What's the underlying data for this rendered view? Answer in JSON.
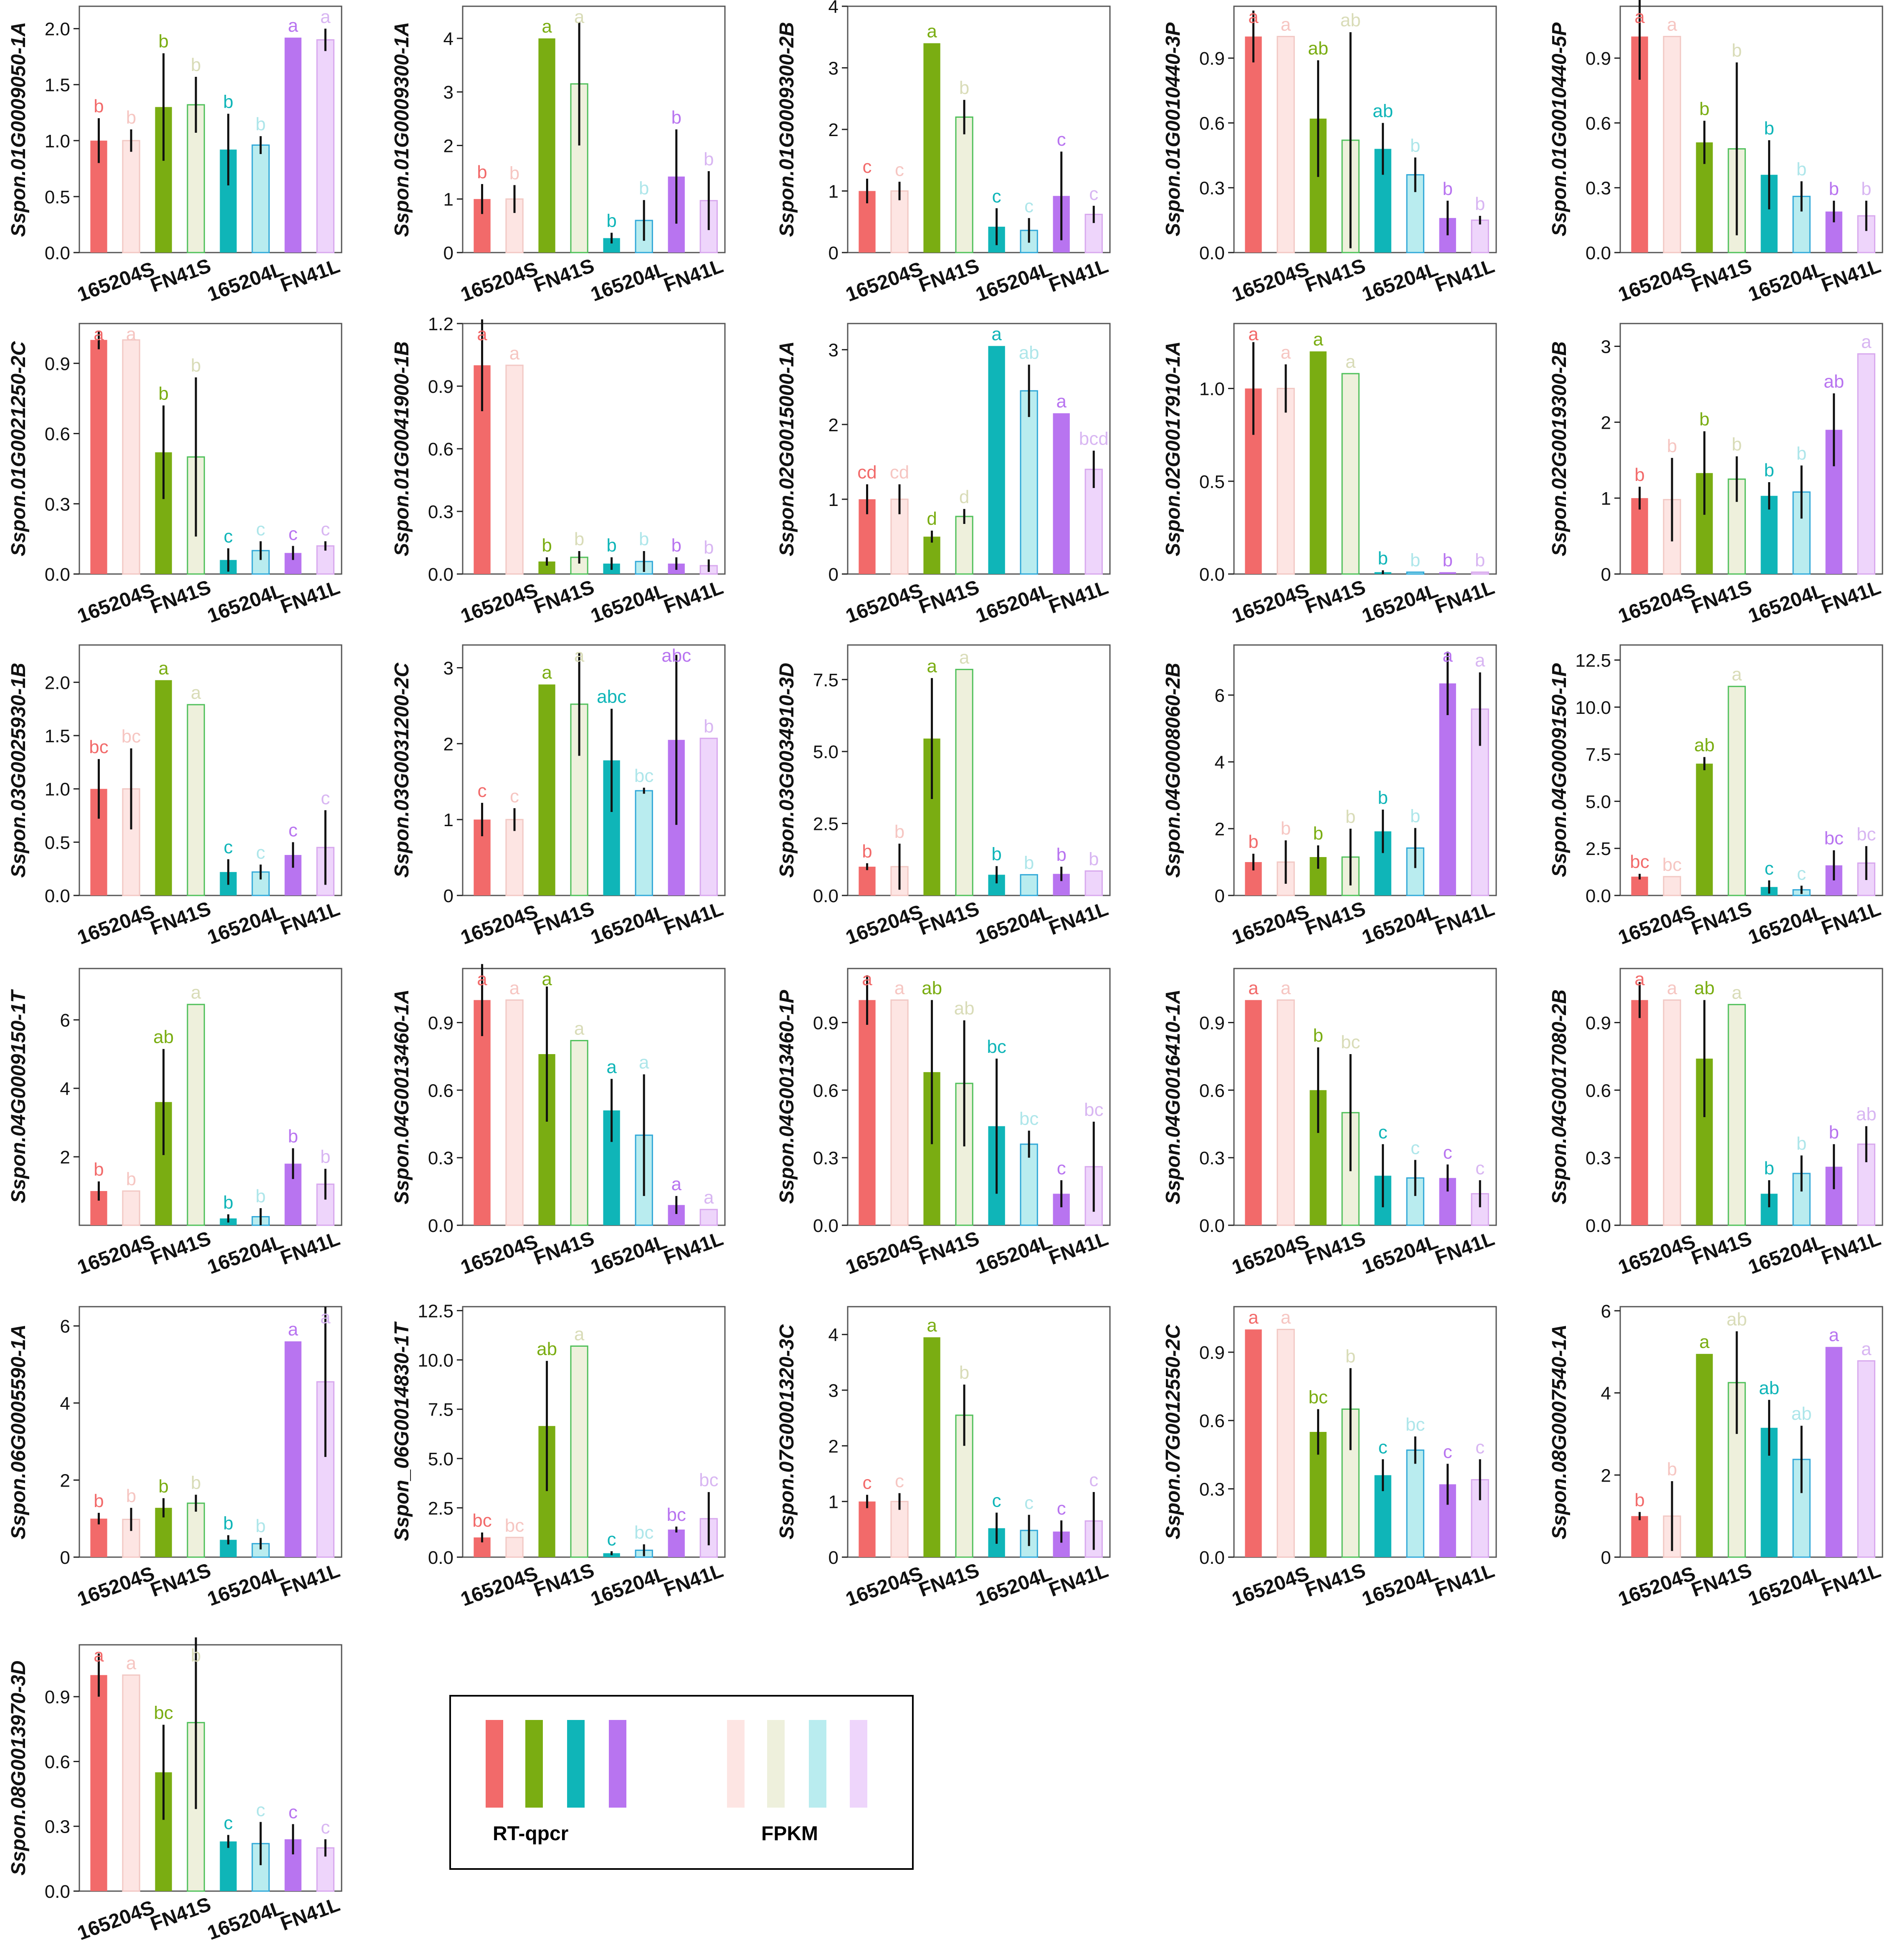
{
  "figure": {
    "categories": [
      "165204S",
      "FN41S",
      "165204L",
      "FN41L"
    ],
    "legend": {
      "qpcr_label": "RT-qpcr",
      "fpkm_label": "FPKM"
    }
  },
  "colors": {
    "qpcr": [
      "#f26a6a",
      "#7aad12",
      "#0fb5b8",
      "#b874f0"
    ],
    "fpkm": [
      "#fde5e3",
      "#eef0dc",
      "#b9ecef",
      "#eed5fb"
    ],
    "fpkm_edge": [
      "#f2c8c4",
      "#4fc05a",
      "#30a8d8",
      "#d8a8ee"
    ],
    "letters": [
      "#f26a6a",
      "#7aad12",
      "#0fb5b8",
      "#b874f0"
    ],
    "letters_light": [
      "#f6c6c2",
      "#d9dcb8",
      "#aee6ea",
      "#d8b6f2"
    ]
  },
  "chart_data": [
    {
      "ylabel": "Sspon.01G0009050-1A",
      "ymax": 2.2,
      "ticks": [
        "0.0",
        "0.5",
        "1.0",
        "1.5",
        "2.0"
      ],
      "tick_values": [
        0,
        0.5,
        1,
        1.5,
        2
      ],
      "qpcr": [
        1.0,
        1.3,
        0.92,
        1.92
      ],
      "qpcr_err": [
        0.2,
        0.48,
        0.32,
        0
      ],
      "fpkm": [
        1.0,
        1.32,
        0.96,
        1.9
      ],
      "fpkm_err": [
        0.1,
        0.25,
        0.08,
        0.1
      ],
      "letters_qpcr": [
        "b",
        "b",
        "b",
        "a"
      ],
      "letters_fpkm": [
        "b",
        "b",
        "b",
        "a"
      ]
    },
    {
      "ylabel": "Sspon.01G0009300-1A",
      "ymax": 4.6,
      "ticks": [
        "0",
        "1",
        "2",
        "3",
        "4"
      ],
      "tick_values": [
        0,
        1,
        2,
        3,
        4
      ],
      "qpcr": [
        1.0,
        4.0,
        0.27,
        1.42
      ],
      "qpcr_err": [
        0.28,
        0,
        0.1,
        0.88
      ],
      "fpkm": [
        1.0,
        3.15,
        0.6,
        0.97
      ],
      "fpkm_err": [
        0.26,
        1.15,
        0.38,
        0.55
      ],
      "letters_qpcr": [
        "b",
        "a",
        "b",
        "b"
      ],
      "letters_fpkm": [
        "b",
        "a",
        "b",
        "b"
      ]
    },
    {
      "ylabel": "Sspon.01G0009300-2B",
      "ymax": 4.0,
      "ticks": [
        "0",
        "1",
        "2",
        "3",
        "4"
      ],
      "tick_values": [
        0,
        1,
        2,
        3,
        4
      ],
      "qpcr": [
        1.0,
        3.4,
        0.42,
        0.92
      ],
      "qpcr_err": [
        0.2,
        0,
        0.3,
        0.72
      ],
      "fpkm": [
        1.0,
        2.2,
        0.36,
        0.62
      ],
      "fpkm_err": [
        0.15,
        0.28,
        0.2,
        0.14
      ],
      "letters_qpcr": [
        "c",
        "a",
        "c",
        "c"
      ],
      "letters_fpkm": [
        "c",
        "b",
        "c",
        "c"
      ]
    },
    {
      "ylabel": "Sspon.01G0010440-3P",
      "ymax": 1.14,
      "ticks": [
        "0.0",
        "0.3",
        "0.6",
        "0.9"
      ],
      "tick_values": [
        0,
        0.3,
        0.6,
        0.9
      ],
      "qpcr": [
        1.0,
        0.62,
        0.48,
        0.16
      ],
      "qpcr_err": [
        0.12,
        0.27,
        0.12,
        0.08
      ],
      "fpkm": [
        1.0,
        0.52,
        0.36,
        0.15
      ],
      "fpkm_err": [
        0,
        0.5,
        0.08,
        0.02
      ],
      "letters_qpcr": [
        "a",
        "ab",
        "ab",
        "b"
      ],
      "letters_fpkm": [
        "a",
        "ab",
        "b",
        "b"
      ]
    },
    {
      "ylabel": "Sspon.01G0010440-5P",
      "ymax": 1.14,
      "ticks": [
        "0.0",
        "0.3",
        "0.6",
        "0.9"
      ],
      "tick_values": [
        0,
        0.3,
        0.6,
        0.9
      ],
      "qpcr": [
        1.0,
        0.51,
        0.36,
        0.19
      ],
      "qpcr_err": [
        0.2,
        0.1,
        0.16,
        0.05
      ],
      "fpkm": [
        1.0,
        0.48,
        0.26,
        0.17
      ],
      "fpkm_err": [
        0,
        0.4,
        0.07,
        0.07
      ],
      "letters_qpcr": [
        "a",
        "b",
        "b",
        "b"
      ],
      "letters_fpkm": [
        "a",
        "b",
        "b",
        "b"
      ]
    },
    {
      "ylabel": "Sspon.01G0021250-2C",
      "ymax": 1.07,
      "ticks": [
        "0.0",
        "0.3",
        "0.6",
        "0.9"
      ],
      "tick_values": [
        0,
        0.3,
        0.6,
        0.9
      ],
      "qpcr": [
        1.0,
        0.52,
        0.06,
        0.09
      ],
      "qpcr_err": [
        0.04,
        0.2,
        0.05,
        0.03
      ],
      "fpkm": [
        1.0,
        0.5,
        0.1,
        0.12
      ],
      "fpkm_err": [
        0,
        0.34,
        0.04,
        0.02
      ],
      "letters_qpcr": [
        "a",
        "b",
        "c",
        "c"
      ],
      "letters_fpkm": [
        "a",
        "b",
        "c",
        "c"
      ]
    },
    {
      "ylabel": "Sspon.01G0041900-1B",
      "ymax": 1.2,
      "ticks": [
        "0.0",
        "0.3",
        "0.6",
        "0.9",
        "1.2"
      ],
      "tick_values": [
        0,
        0.3,
        0.6,
        0.9,
        1.2
      ],
      "qpcr": [
        1.0,
        0.06,
        0.05,
        0.05
      ],
      "qpcr_err": [
        0.22,
        0.02,
        0.03,
        0.03
      ],
      "fpkm": [
        1.0,
        0.08,
        0.06,
        0.04
      ],
      "fpkm_err": [
        0,
        0.03,
        0.05,
        0.03
      ],
      "letters_qpcr": [
        "a",
        "b",
        "b",
        "b"
      ],
      "letters_fpkm": [
        "a",
        "b",
        "b",
        "b"
      ]
    },
    {
      "ylabel": "Sspon.02G0015000-1A",
      "ymax": 3.35,
      "ticks": [
        "0",
        "1",
        "2",
        "3"
      ],
      "tick_values": [
        0,
        1,
        2,
        3
      ],
      "qpcr": [
        1.0,
        0.5,
        3.05,
        2.15
      ],
      "qpcr_err": [
        0.2,
        0.08,
        0,
        0
      ],
      "fpkm": [
        1.0,
        0.77,
        2.45,
        1.4
      ],
      "fpkm_err": [
        0.2,
        0.1,
        0.35,
        0.25
      ],
      "letters_qpcr": [
        "cd",
        "d",
        "a",
        "a"
      ],
      "letters_fpkm": [
        "cd",
        "d",
        "ab",
        "bcd"
      ]
    },
    {
      "ylabel": "Sspon.02G0017910-1A",
      "ymax": 1.35,
      "ticks": [
        "0.0",
        "0.5",
        "1.0"
      ],
      "tick_values": [
        0,
        0.5,
        1
      ],
      "qpcr": [
        1.0,
        1.2,
        0.01,
        0.01
      ],
      "qpcr_err": [
        0.25,
        0,
        0.01,
        0
      ],
      "fpkm": [
        1.0,
        1.08,
        0.01,
        0.01
      ],
      "fpkm_err": [
        0.13,
        0,
        0,
        0
      ],
      "letters_qpcr": [
        "a",
        "a",
        "b",
        "b"
      ],
      "letters_fpkm": [
        "a",
        "a",
        "b",
        "b"
      ]
    },
    {
      "ylabel": "Sspon.02G0019300-2B",
      "ymax": 3.3,
      "ticks": [
        "0",
        "1",
        "2",
        "3"
      ],
      "tick_values": [
        0,
        1,
        2,
        3
      ],
      "qpcr": [
        1.0,
        1.33,
        1.03,
        1.9
      ],
      "qpcr_err": [
        0.15,
        0.55,
        0.18,
        0.48
      ],
      "fpkm": [
        0.98,
        1.25,
        1.08,
        2.9
      ],
      "fpkm_err": [
        0.55,
        0.3,
        0.35,
        0
      ],
      "letters_qpcr": [
        "b",
        "b",
        "b",
        "ab"
      ],
      "letters_fpkm": [
        "b",
        "b",
        "b",
        "a"
      ]
    },
    {
      "ylabel": "Sspon.03G0025930-1B",
      "ymax": 2.35,
      "ticks": [
        "0.0",
        "0.5",
        "1.0",
        "1.5",
        "2.0"
      ],
      "tick_values": [
        0,
        0.5,
        1,
        1.5,
        2
      ],
      "qpcr": [
        1.0,
        2.02,
        0.22,
        0.38
      ],
      "qpcr_err": [
        0.28,
        0,
        0.12,
        0.12
      ],
      "fpkm": [
        1.0,
        1.79,
        0.22,
        0.45
      ],
      "fpkm_err": [
        0.38,
        0,
        0.07,
        0.35
      ],
      "letters_qpcr": [
        "bc",
        "a",
        "c",
        "c"
      ],
      "letters_fpkm": [
        "bc",
        "a",
        "c",
        "c"
      ]
    },
    {
      "ylabel": "Sspon.03G0031200-2C",
      "ymax": 3.3,
      "ticks": [
        "0",
        "1",
        "2",
        "3"
      ],
      "tick_values": [
        0,
        1,
        2,
        3
      ],
      "qpcr": [
        1.0,
        2.78,
        1.78,
        2.05
      ],
      "qpcr_err": [
        0.22,
        0,
        0.68,
        1.12
      ],
      "fpkm": [
        1.0,
        2.52,
        1.38,
        2.07
      ],
      "fpkm_err": [
        0.15,
        0.68,
        0.04,
        0
      ],
      "letters_qpcr": [
        "c",
        "a",
        "abc",
        "abc"
      ],
      "letters_fpkm": [
        "c",
        "a",
        "bc",
        "b"
      ]
    },
    {
      "ylabel": "Sspon.03G0034910-3D",
      "ymax": 8.7,
      "ticks": [
        "0.0",
        "2.5",
        "5.0",
        "7.5"
      ],
      "tick_values": [
        0,
        2.5,
        5,
        7.5
      ],
      "qpcr": [
        1.0,
        5.45,
        0.72,
        0.75
      ],
      "qpcr_err": [
        0.12,
        2.1,
        0.3,
        0.25
      ],
      "fpkm": [
        1.0,
        7.85,
        0.72,
        0.85
      ],
      "fpkm_err": [
        0.8,
        0,
        0,
        0
      ],
      "letters_qpcr": [
        "b",
        "a",
        "b",
        "b"
      ],
      "letters_fpkm": [
        "b",
        "a",
        "b",
        "b"
      ]
    },
    {
      "ylabel": "Sspon.04G0008060-2B",
      "ymax": 7.5,
      "ticks": [
        "0",
        "2",
        "4",
        "6"
      ],
      "tick_values": [
        0,
        2,
        4,
        6
      ],
      "qpcr": [
        1.0,
        1.15,
        1.92,
        6.35
      ],
      "qpcr_err": [
        0.25,
        0.35,
        0.65,
        0.95
      ],
      "fpkm": [
        1.0,
        1.15,
        1.42,
        5.58
      ],
      "fpkm_err": [
        0.65,
        0.85,
        0.6,
        1.1
      ],
      "letters_qpcr": [
        "b",
        "b",
        "b",
        "a"
      ],
      "letters_fpkm": [
        "b",
        "b",
        "b",
        "a"
      ]
    },
    {
      "ylabel": "Sspon.04G0009150-1P",
      "ymax": 13.3,
      "ticks": [
        "0.0",
        "2.5",
        "5.0",
        "7.5",
        "10.0",
        "12.5"
      ],
      "tick_values": [
        0,
        2.5,
        5,
        7.5,
        10,
        12.5
      ],
      "qpcr": [
        1.0,
        7.0,
        0.45,
        1.6
      ],
      "qpcr_err": [
        0.15,
        0.35,
        0.35,
        0.8
      ],
      "fpkm": [
        1.0,
        11.1,
        0.3,
        1.72
      ],
      "fpkm_err": [
        0,
        0,
        0.22,
        0.9
      ],
      "letters_qpcr": [
        "bc",
        "ab",
        "c",
        "bc"
      ],
      "letters_fpkm": [
        "bc",
        "a",
        "c",
        "bc"
      ]
    },
    {
      "ylabel": "Sspon.04G0009150-1T",
      "ymax": 7.5,
      "ticks": [
        "2",
        "4",
        "6"
      ],
      "tick_values": [
        2,
        4,
        6
      ],
      "qpcr": [
        1.0,
        3.6,
        0.2,
        1.8
      ],
      "qpcr_err": [
        0.28,
        1.55,
        0.12,
        0.45
      ],
      "fpkm": [
        1.0,
        6.45,
        0.25,
        1.2
      ],
      "fpkm_err": [
        0,
        0,
        0.25,
        0.45
      ],
      "letters_qpcr": [
        "b",
        "ab",
        "b",
        "b"
      ],
      "letters_fpkm": [
        "b",
        "a",
        "b",
        "b"
      ]
    },
    {
      "ylabel": "Sspon.04G0013460-1A",
      "ymax": 1.14,
      "ticks": [
        "0.0",
        "0.3",
        "0.6",
        "0.9"
      ],
      "tick_values": [
        0,
        0.3,
        0.6,
        0.9
      ],
      "qpcr": [
        1.0,
        0.76,
        0.51,
        0.09
      ],
      "qpcr_err": [
        0.16,
        0.3,
        0.14,
        0.04
      ],
      "fpkm": [
        1.0,
        0.82,
        0.4,
        0.07
      ],
      "fpkm_err": [
        0,
        0,
        0.27,
        0
      ],
      "letters_qpcr": [
        "a",
        "a",
        "a",
        "a"
      ],
      "letters_fpkm": [
        "a",
        "a",
        "a",
        "a"
      ]
    },
    {
      "ylabel": "Sspon.04G0013460-1P",
      "ymax": 1.14,
      "ticks": [
        "0.0",
        "0.3",
        "0.6",
        "0.9"
      ],
      "tick_values": [
        0,
        0.3,
        0.6,
        0.9
      ],
      "qpcr": [
        1.0,
        0.68,
        0.44,
        0.14
      ],
      "qpcr_err": [
        0.11,
        0.32,
        0.3,
        0.06
      ],
      "fpkm": [
        1.0,
        0.63,
        0.36,
        0.26
      ],
      "fpkm_err": [
        0,
        0.28,
        0.06,
        0.2
      ],
      "letters_qpcr": [
        "a",
        "ab",
        "bc",
        "c"
      ],
      "letters_fpkm": [
        "a",
        "ab",
        "bc",
        "bc"
      ]
    },
    {
      "ylabel": "Sspon.04G0016410-1A",
      "ymax": 1.14,
      "ticks": [
        "0.0",
        "0.3",
        "0.6",
        "0.9"
      ],
      "tick_values": [
        0,
        0.3,
        0.6,
        0.9
      ],
      "qpcr": [
        1.0,
        0.6,
        0.22,
        0.21
      ],
      "qpcr_err": [
        0,
        0.19,
        0.14,
        0.06
      ],
      "fpkm": [
        1.0,
        0.5,
        0.21,
        0.14
      ],
      "fpkm_err": [
        0,
        0.26,
        0.08,
        0.06
      ],
      "letters_qpcr": [
        "a",
        "b",
        "c",
        "c"
      ],
      "letters_fpkm": [
        "a",
        "bc",
        "c",
        "c"
      ]
    },
    {
      "ylabel": "Sspon.04G0017080-2B",
      "ymax": 1.14,
      "ticks": [
        "0.0",
        "0.3",
        "0.6",
        "0.9"
      ],
      "tick_values": [
        0,
        0.3,
        0.6,
        0.9
      ],
      "qpcr": [
        1.0,
        0.74,
        0.14,
        0.26
      ],
      "qpcr_err": [
        0.08,
        0.26,
        0.06,
        0.1
      ],
      "fpkm": [
        1.0,
        0.98,
        0.23,
        0.36
      ],
      "fpkm_err": [
        0,
        0,
        0.08,
        0.08
      ],
      "letters_qpcr": [
        "a",
        "ab",
        "b",
        "b"
      ],
      "letters_fpkm": [
        "a",
        "a",
        "b",
        "ab"
      ]
    },
    {
      "ylabel": "Sspon.06G0005590-1A",
      "ymax": 6.5,
      "ticks": [
        "0",
        "2",
        "4",
        "6"
      ],
      "tick_values": [
        0,
        2,
        4,
        6
      ],
      "qpcr": [
        1.0,
        1.28,
        0.45,
        5.6
      ],
      "qpcr_err": [
        0.15,
        0.25,
        0.12,
        0
      ],
      "fpkm": [
        0.98,
        1.4,
        0.35,
        4.55
      ],
      "fpkm_err": [
        0.3,
        0.22,
        0.15,
        1.95
      ],
      "letters_qpcr": [
        "b",
        "b",
        "b",
        "a"
      ],
      "letters_fpkm": [
        "b",
        "b",
        "b",
        "a"
      ]
    },
    {
      "ylabel": "Sspon_06G0014830-1T",
      "ymax": 12.7,
      "ticks": [
        "0.0",
        "2.5",
        "5.0",
        "7.5",
        "10.0",
        "12.5"
      ],
      "tick_values": [
        0,
        2.5,
        5,
        7.5,
        10,
        12.5
      ],
      "qpcr": [
        1.0,
        6.65,
        0.2,
        1.4
      ],
      "qpcr_err": [
        0.25,
        3.3,
        0.1,
        0.15
      ],
      "fpkm": [
        1.0,
        10.7,
        0.35,
        1.95
      ],
      "fpkm_err": [
        0,
        0,
        0.3,
        1.35
      ],
      "letters_qpcr": [
        "bc",
        "ab",
        "c",
        "bc"
      ],
      "letters_fpkm": [
        "bc",
        "a",
        "bc",
        "bc"
      ]
    },
    {
      "ylabel": "Sspon.07G0001320-3C",
      "ymax": 4.5,
      "ticks": [
        "0",
        "1",
        "2",
        "3",
        "4"
      ],
      "tick_values": [
        0,
        1,
        2,
        3,
        4
      ],
      "qpcr": [
        1.0,
        3.95,
        0.52,
        0.46
      ],
      "qpcr_err": [
        0.12,
        0,
        0.28,
        0.2
      ],
      "fpkm": [
        1.0,
        2.55,
        0.48,
        0.65
      ],
      "fpkm_err": [
        0.15,
        0.55,
        0.28,
        0.52
      ],
      "letters_qpcr": [
        "c",
        "a",
        "c",
        "c"
      ],
      "letters_fpkm": [
        "c",
        "b",
        "c",
        "c"
      ]
    },
    {
      "ylabel": "Sspon.07G0012550-2C",
      "ymax": 1.1,
      "ticks": [
        "0.0",
        "0.3",
        "0.6",
        "0.9"
      ],
      "tick_values": [
        0,
        0.3,
        0.6,
        0.9
      ],
      "qpcr": [
        1.0,
        0.55,
        0.36,
        0.32
      ],
      "qpcr_err": [
        0,
        0.1,
        0.07,
        0.09
      ],
      "fpkm": [
        1.0,
        0.65,
        0.47,
        0.34
      ],
      "fpkm_err": [
        0,
        0.18,
        0.06,
        0.09
      ],
      "letters_qpcr": [
        "a",
        "bc",
        "c",
        "c"
      ],
      "letters_fpkm": [
        "a",
        "b",
        "bc",
        "c"
      ]
    },
    {
      "ylabel": "Sspon.08G0007540-1A",
      "ymax": 6.1,
      "ticks": [
        "0",
        "2",
        "4",
        "6"
      ],
      "tick_values": [
        0,
        2,
        4,
        6
      ],
      "qpcr": [
        1.0,
        4.95,
        3.15,
        5.12
      ],
      "qpcr_err": [
        0.1,
        0,
        0.68,
        0
      ],
      "fpkm": [
        1.0,
        4.25,
        2.38,
        4.78
      ],
      "fpkm_err": [
        0.85,
        1.25,
        0.82,
        0
      ],
      "letters_qpcr": [
        "b",
        "a",
        "ab",
        "a"
      ],
      "letters_fpkm": [
        "b",
        "ab",
        "ab",
        "a"
      ]
    },
    {
      "ylabel": "Sspon.08G0013970-3D",
      "ymax": 1.14,
      "ticks": [
        "0.0",
        "0.3",
        "0.6",
        "0.9"
      ],
      "tick_values": [
        0,
        0.3,
        0.6,
        0.9
      ],
      "qpcr": [
        1.0,
        0.55,
        0.23,
        0.24
      ],
      "qpcr_err": [
        0.1,
        0.22,
        0.03,
        0.07
      ],
      "fpkm": [
        1.0,
        0.78,
        0.22,
        0.2
      ],
      "fpkm_err": [
        0,
        0.4,
        0.1,
        0.04
      ],
      "letters_qpcr": [
        "a",
        "bc",
        "c",
        "c"
      ],
      "letters_fpkm": [
        "a",
        "b",
        "c",
        "c"
      ]
    }
  ]
}
